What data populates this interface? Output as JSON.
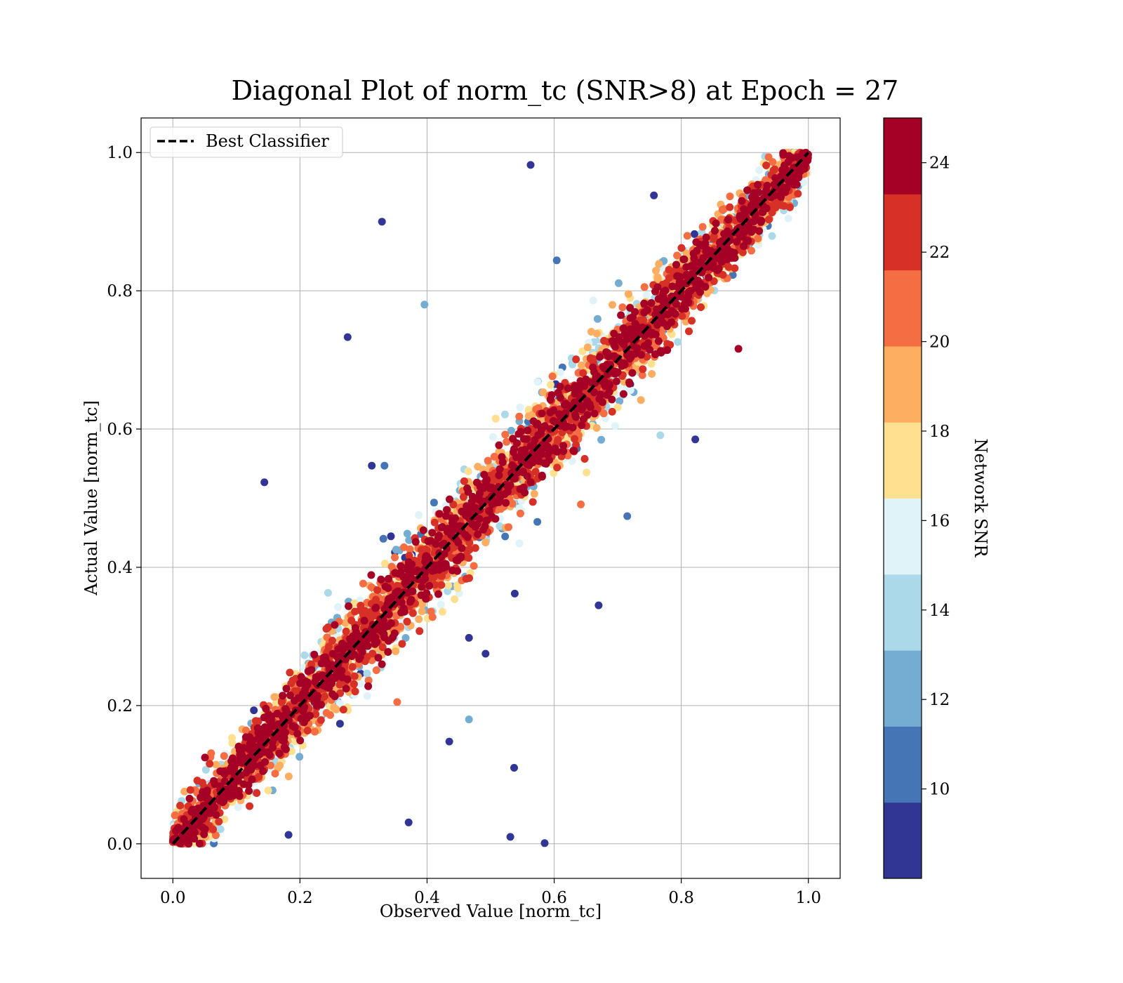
{
  "chart_data": {
    "type": "scatter",
    "title": "Diagonal Plot of norm_tc (SNR>8) at Epoch = 27",
    "xlabel": "Observed Value [norm_tc]",
    "ylabel": "Actual Value [norm_tc]",
    "xlim": [
      -0.05,
      1.05
    ],
    "ylim": [
      -0.05,
      1.05
    ],
    "xticks": [
      "0.0",
      "0.2",
      "0.4",
      "0.6",
      "0.8",
      "1.0"
    ],
    "yticks": [
      "0.0",
      "0.2",
      "0.4",
      "0.6",
      "0.8",
      "1.0"
    ],
    "xtick_values": [
      0.0,
      0.2,
      0.4,
      0.6,
      0.8,
      1.0
    ],
    "ytick_values": [
      0.0,
      0.2,
      0.4,
      0.6,
      0.8,
      1.0
    ],
    "grid": true,
    "legend": {
      "location": "upper-left",
      "entries": [
        {
          "label": "Best Classifier",
          "style": "black dashed line"
        }
      ]
    },
    "reference_line": {
      "label": "Best Classifier",
      "x": [
        0.0,
        1.0
      ],
      "y": [
        0.0,
        1.0
      ],
      "color": "#000000",
      "dash": true
    },
    "colorbar": {
      "label": "Network SNR",
      "range": [
        8,
        25
      ],
      "boundaries": [
        8,
        9.7,
        11.4,
        13.1,
        14.8,
        16.5,
        18.2,
        19.9,
        21.6,
        23.3,
        25
      ],
      "colors": [
        "#313695",
        "#4575b4",
        "#74add1",
        "#abd9e9",
        "#e0f3f8",
        "#fee090",
        "#fdae61",
        "#f46d43",
        "#d73027",
        "#a50026"
      ],
      "tick_values": [
        10,
        12,
        14,
        16,
        18,
        20,
        22,
        24
      ],
      "tick_labels": [
        "10",
        "12",
        "14",
        "16",
        "18",
        "20",
        "22",
        "24"
      ]
    },
    "points_note_x": [],
    "series": [
      {
        "name": "",
        "color_by": "Network SNR",
        "approx_distribution": {
          "count": 5200,
          "x_range": [
            0.0,
            1.0
          ],
          "y_equals_x_spread_sd": 0.035
        },
        "outliers": [
          {
            "x": 0.563,
            "y": 0.982,
            "snr": 9
          },
          {
            "x": 0.329,
            "y": 0.9,
            "snr": 9
          },
          {
            "x": 0.396,
            "y": 0.78,
            "snr": 12.5
          },
          {
            "x": 0.275,
            "y": 0.733,
            "snr": 9
          },
          {
            "x": 0.144,
            "y": 0.523,
            "snr": 9
          },
          {
            "x": 0.822,
            "y": 0.585,
            "snr": 9
          },
          {
            "x": 0.67,
            "y": 0.345,
            "snr": 9
          },
          {
            "x": 0.715,
            "y": 0.474,
            "snr": 10.5
          },
          {
            "x": 0.466,
            "y": 0.18,
            "snr": 12.5
          },
          {
            "x": 0.435,
            "y": 0.148,
            "snr": 9
          },
          {
            "x": 0.537,
            "y": 0.11,
            "snr": 9
          },
          {
            "x": 0.371,
            "y": 0.031,
            "snr": 9
          },
          {
            "x": 0.531,
            "y": 0.01,
            "snr": 9
          },
          {
            "x": 0.585,
            "y": 0.001,
            "snr": 9
          },
          {
            "x": 0.182,
            "y": 0.013,
            "snr": 9
          },
          {
            "x": 0.89,
            "y": 0.716,
            "snr": 24.5
          },
          {
            "x": 0.466,
            "y": 0.298,
            "snr": 9
          },
          {
            "x": 0.492,
            "y": 0.275,
            "snr": 9
          },
          {
            "x": 0.538,
            "y": 0.362,
            "snr": 9
          },
          {
            "x": 0.604,
            "y": 0.844,
            "snr": 10.5
          },
          {
            "x": 0.757,
            "y": 0.938,
            "snr": 9
          },
          {
            "x": 0.767,
            "y": 0.591,
            "snr": 14
          },
          {
            "x": 0.313,
            "y": 0.547,
            "snr": 9
          },
          {
            "x": 0.333,
            "y": 0.547,
            "snr": 10.5
          },
          {
            "x": 0.642,
            "y": 0.491,
            "snr": 20.5
          },
          {
            "x": 0.353,
            "y": 0.205,
            "snr": 20.5
          }
        ]
      }
    ]
  }
}
